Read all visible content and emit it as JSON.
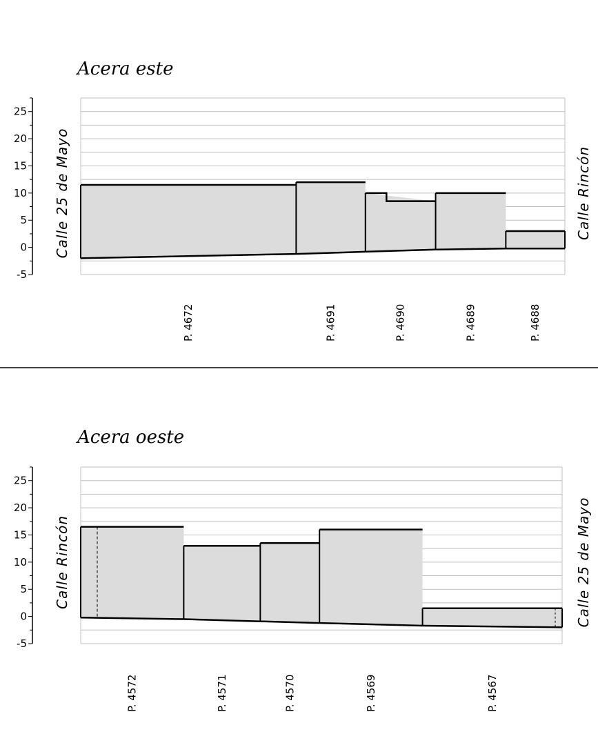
{
  "chart_data": [
    {
      "type": "area",
      "title": "Acera este",
      "ylim": [
        -5,
        27.5
      ],
      "yticks": [
        "25",
        "20",
        "15",
        "10",
        "5",
        "0",
        "-5"
      ],
      "grid": true,
      "street_left": "Calle 25 de Mayo",
      "street_right": "Calle Rincón",
      "plots": [
        {
          "label": "P. 4672",
          "x": [
            0,
            44.5
          ],
          "top": [
            11.5,
            11.5
          ],
          "base": [
            -2.0,
            -1.2
          ]
        },
        {
          "label": "P. 4691",
          "x": [
            44.5,
            58.8
          ],
          "top": [
            12.0,
            12.0
          ],
          "base": [
            -1.2,
            -0.8
          ]
        },
        {
          "label": "P. 4690",
          "x": [
            58.8,
            73.3
          ],
          "top": [
            10.0,
            8.5
          ],
          "base": [
            -0.8,
            -0.4
          ]
        },
        {
          "label": "P. 4689",
          "x": [
            73.3,
            87.8
          ],
          "top": [
            10.0,
            10.0
          ],
          "base": [
            -0.4,
            -0.2
          ]
        },
        {
          "label": "P. 4688",
          "x": [
            87.8,
            100
          ],
          "top": [
            3.0,
            3.0
          ],
          "base": [
            -0.2,
            -0.2
          ]
        }
      ]
    },
    {
      "type": "area",
      "title": "Acera oeste",
      "ylim": [
        -5,
        27.5
      ],
      "yticks": [
        "25",
        "20",
        "15",
        "10",
        "5",
        "0",
        "-5"
      ],
      "grid": true,
      "street_left": "Calle Rincón",
      "street_right": "Calle 25 de Mayo",
      "plots": [
        {
          "label": "P. 4572",
          "x": [
            0,
            21.4
          ],
          "top": [
            16.5,
            16.5
          ],
          "base": [
            -0.2,
            -0.5
          ]
        },
        {
          "label": "P. 4571",
          "x": [
            21.4,
            37.3
          ],
          "top": [
            13.0,
            13.0
          ],
          "base": [
            -0.5,
            -0.9
          ]
        },
        {
          "label": "P. 4570",
          "x": [
            37.3,
            49.6
          ],
          "top": [
            13.5,
            13.5
          ],
          "base": [
            -0.9,
            -1.2
          ]
        },
        {
          "label": "P. 4569",
          "x": [
            49.6,
            71.0
          ],
          "top": [
            16.0,
            16.0
          ],
          "base": [
            -1.2,
            -1.7
          ]
        },
        {
          "label": "P. 4567",
          "x": [
            71.0,
            100
          ],
          "top": [
            1.5,
            1.5
          ],
          "base": [
            -1.7,
            -2.0
          ]
        }
      ]
    }
  ]
}
